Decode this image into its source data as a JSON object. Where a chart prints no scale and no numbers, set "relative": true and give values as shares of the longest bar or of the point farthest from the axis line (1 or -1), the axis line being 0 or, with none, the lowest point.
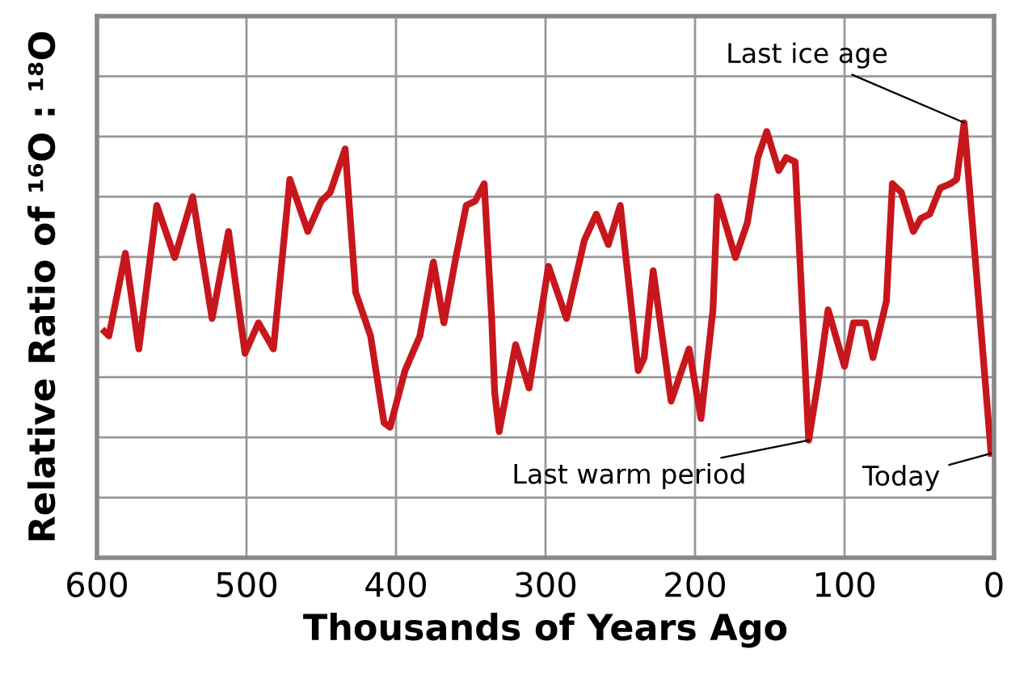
{
  "chart_data": {
    "type": "line",
    "relative": true,
    "xlabel": "Thousands of Years Ago",
    "ylabel": "Relative Ratio of ¹⁶O : ¹⁸O",
    "x": [
      595,
      592,
      581,
      572,
      560,
      548,
      536,
      530,
      523,
      512,
      501,
      492,
      482,
      471,
      459,
      450,
      444,
      434,
      427,
      417,
      408,
      404,
      394,
      384,
      375,
      368,
      360,
      353,
      347,
      341,
      336,
      334,
      331,
      320,
      311,
      298,
      286,
      274,
      266,
      258,
      250,
      238,
      234,
      228,
      216,
      204,
      196,
      188,
      185,
      173,
      165,
      158,
      152,
      144,
      139,
      133,
      124,
      117,
      111,
      100,
      94,
      86,
      81,
      72,
      68,
      62,
      54,
      49,
      43,
      36,
      29,
      25,
      20,
      2
    ],
    "series": [
      {
        "color": "#c8161d",
        "values": [
          0.52,
          0.51,
          0.7,
          0.48,
          0.81,
          0.69,
          0.83,
          0.7,
          0.55,
          0.75,
          0.47,
          0.54,
          0.48,
          0.87,
          0.75,
          0.82,
          0.84,
          0.94,
          0.61,
          0.51,
          0.31,
          0.3,
          0.43,
          0.51,
          0.68,
          0.54,
          0.69,
          0.81,
          0.82,
          0.86,
          0.55,
          0.38,
          0.29,
          0.49,
          0.39,
          0.67,
          0.55,
          0.73,
          0.79,
          0.72,
          0.81,
          0.43,
          0.46,
          0.66,
          0.36,
          0.48,
          0.32,
          0.57,
          0.83,
          0.69,
          0.77,
          0.92,
          0.98,
          0.89,
          0.92,
          0.91,
          0.27,
          0.42,
          0.57,
          0.44,
          0.54,
          0.54,
          0.46,
          0.59,
          0.86,
          0.84,
          0.75,
          0.78,
          0.79,
          0.85,
          0.86,
          0.87,
          1.0,
          0.24
        ]
      }
    ],
    "xlim": [
      600,
      0
    ],
    "xticks": [
      600,
      500,
      400,
      300,
      200,
      100,
      0
    ],
    "grid": true,
    "marker": "none",
    "line_style": "solid",
    "annotations": [
      {
        "text": "Last ice age",
        "x": 20,
        "y": 1.0
      },
      {
        "text": "Last warm period",
        "x": 124,
        "y": 0.27
      },
      {
        "text": "Today",
        "x": 2,
        "y": 0.24
      }
    ]
  }
}
